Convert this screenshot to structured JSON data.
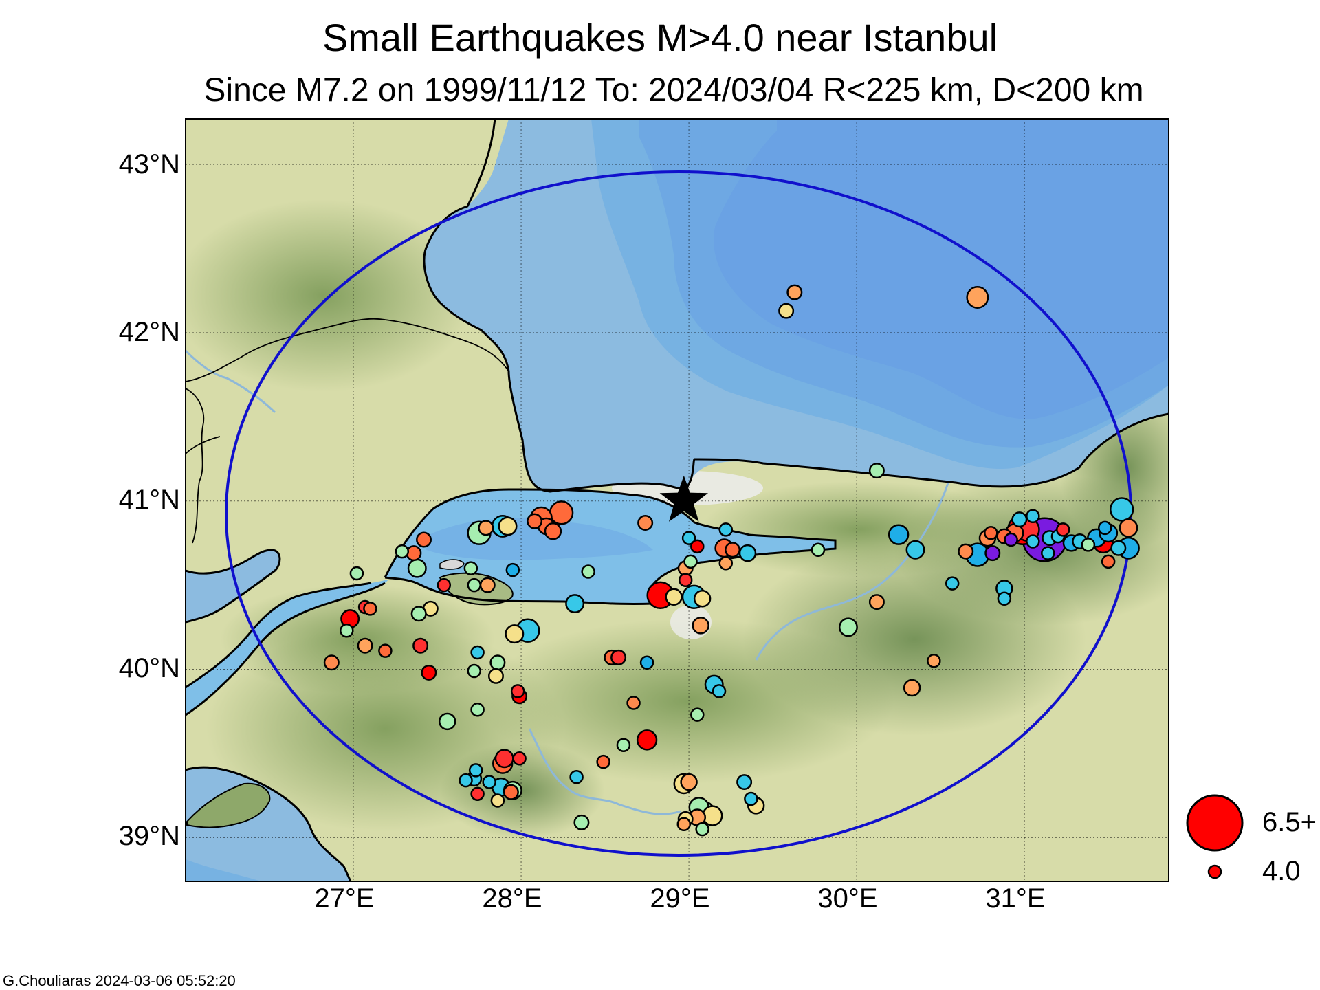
{
  "title": "Small Earthquakes M>4.0 near Istanbul",
  "subtitle": "Since M7.2 on 1999/11/12  To: 2024/03/04 R<225 km, D<200 km",
  "credit": "G.Chouliaras  2024-03-06 05:52:20",
  "lon_ticks": [
    "27°E",
    "28°E",
    "29°E",
    "30°E",
    "31°E"
  ],
  "lat_ticks": [
    "43°N",
    "42°N",
    "41°N",
    "40°N",
    "39°N"
  ],
  "legend": {
    "large": "6.5+",
    "small": "4.0"
  },
  "map": {
    "lon_range": [
      26.0,
      31.86
    ],
    "lat_range": [
      38.74,
      43.27
    ],
    "center": {
      "lon": 28.97,
      "lat": 41.0,
      "symbol": "star-icon"
    },
    "radius_km": 225,
    "colors": {
      "sea": "#7fbfe8",
      "land": "#cfd8a2",
      "radius_circle": "#1010cc"
    }
  },
  "events": [
    {
      "lon": 29.63,
      "lat": 42.24,
      "mag": 4.1,
      "color": "#ffa35c"
    },
    {
      "lon": 29.58,
      "lat": 42.13,
      "mag": 4.1,
      "color": "#f5e08a"
    },
    {
      "lon": 30.72,
      "lat": 42.21,
      "mag": 4.5,
      "color": "#ffa35c"
    },
    {
      "lon": 30.12,
      "lat": 41.18,
      "mag": 4.1,
      "color": "#a6eeb0"
    },
    {
      "lon": 28.74,
      "lat": 40.87,
      "mag": 4.1,
      "color": "#ff8a4e"
    },
    {
      "lon": 29.0,
      "lat": 40.78,
      "mag": 4.0,
      "color": "#37c8e8"
    },
    {
      "lon": 29.05,
      "lat": 40.73,
      "mag": 4.0,
      "color": "#ff0000"
    },
    {
      "lon": 29.22,
      "lat": 40.83,
      "mag": 4.0,
      "color": "#37c8e8"
    },
    {
      "lon": 29.21,
      "lat": 40.72,
      "mag": 4.3,
      "color": "#ff6a3a"
    },
    {
      "lon": 29.26,
      "lat": 40.71,
      "mag": 4.1,
      "color": "#ff6a3a"
    },
    {
      "lon": 29.35,
      "lat": 40.69,
      "mag": 4.2,
      "color": "#37c8e8"
    },
    {
      "lon": 29.22,
      "lat": 40.63,
      "mag": 4.0,
      "color": "#ffa35c"
    },
    {
      "lon": 28.98,
      "lat": 40.6,
      "mag": 4.1,
      "color": "#ffa35c"
    },
    {
      "lon": 29.01,
      "lat": 40.64,
      "mag": 4.0,
      "color": "#a6eeb0"
    },
    {
      "lon": 28.98,
      "lat": 40.53,
      "mag": 4.0,
      "color": "#ff3030"
    },
    {
      "lon": 28.83,
      "lat": 40.44,
      "mag": 4.8,
      "color": "#ff0000"
    },
    {
      "lon": 28.91,
      "lat": 40.43,
      "mag": 4.2,
      "color": "#f5e08a"
    },
    {
      "lon": 29.03,
      "lat": 40.43,
      "mag": 4.6,
      "color": "#37c8e8"
    },
    {
      "lon": 29.08,
      "lat": 40.42,
      "mag": 4.2,
      "color": "#f5e08a"
    },
    {
      "lon": 29.07,
      "lat": 40.26,
      "mag": 4.2,
      "color": "#ffa35c"
    },
    {
      "lon": 29.77,
      "lat": 40.71,
      "mag": 4.0,
      "color": "#a6eeb0"
    },
    {
      "lon": 30.25,
      "lat": 40.8,
      "mag": 4.4,
      "color": "#1faee8"
    },
    {
      "lon": 30.35,
      "lat": 40.71,
      "mag": 4.3,
      "color": "#37c8e8"
    },
    {
      "lon": 30.57,
      "lat": 40.51,
      "mag": 4.0,
      "color": "#37c8e8"
    },
    {
      "lon": 30.12,
      "lat": 40.4,
      "mag": 4.1,
      "color": "#ffa35c"
    },
    {
      "lon": 29.95,
      "lat": 40.25,
      "mag": 4.3,
      "color": "#a6eeb0"
    },
    {
      "lon": 30.46,
      "lat": 40.05,
      "mag": 4.0,
      "color": "#ffa35c"
    },
    {
      "lon": 30.33,
      "lat": 39.89,
      "mag": 4.2,
      "color": "#ffa35c"
    },
    {
      "lon": 28.24,
      "lat": 40.93,
      "mag": 4.6,
      "color": "#ff6a3a"
    },
    {
      "lon": 28.12,
      "lat": 40.9,
      "mag": 4.5,
      "color": "#ff6a3a"
    },
    {
      "lon": 28.08,
      "lat": 40.88,
      "mag": 4.1,
      "color": "#ff6a3a"
    },
    {
      "lon": 28.15,
      "lat": 40.85,
      "mag": 4.2,
      "color": "#ff6a3a"
    },
    {
      "lon": 28.19,
      "lat": 40.82,
      "mag": 4.2,
      "color": "#ff6a3a"
    },
    {
      "lon": 27.89,
      "lat": 40.85,
      "mag": 4.5,
      "color": "#37c8e8"
    },
    {
      "lon": 27.92,
      "lat": 40.85,
      "mag": 4.3,
      "color": "#f5e08a"
    },
    {
      "lon": 27.75,
      "lat": 40.81,
      "mag": 4.6,
      "color": "#a6eeb0"
    },
    {
      "lon": 27.79,
      "lat": 40.84,
      "mag": 4.1,
      "color": "#ffa35c"
    },
    {
      "lon": 27.42,
      "lat": 40.77,
      "mag": 4.1,
      "color": "#ff6a3a"
    },
    {
      "lon": 27.29,
      "lat": 40.7,
      "mag": 4.0,
      "color": "#a6eeb0"
    },
    {
      "lon": 27.36,
      "lat": 40.69,
      "mag": 4.1,
      "color": "#ff6a3a"
    },
    {
      "lon": 27.38,
      "lat": 40.6,
      "mag": 4.3,
      "color": "#a6eeb0"
    },
    {
      "lon": 27.7,
      "lat": 40.6,
      "mag": 4.0,
      "color": "#a6eeb0"
    },
    {
      "lon": 27.95,
      "lat": 40.59,
      "mag": 4.0,
      "color": "#1faee8"
    },
    {
      "lon": 28.4,
      "lat": 40.58,
      "mag": 4.0,
      "color": "#a6eeb0"
    },
    {
      "lon": 27.02,
      "lat": 40.57,
      "mag": 4.0,
      "color": "#a6eeb0"
    },
    {
      "lon": 27.54,
      "lat": 40.5,
      "mag": 4.0,
      "color": "#ff3030"
    },
    {
      "lon": 27.8,
      "lat": 40.5,
      "mag": 4.1,
      "color": "#ffa35c"
    },
    {
      "lon": 27.72,
      "lat": 40.5,
      "mag": 4.0,
      "color": "#a6eeb0"
    },
    {
      "lon": 27.46,
      "lat": 40.36,
      "mag": 4.1,
      "color": "#f5e08a"
    },
    {
      "lon": 27.39,
      "lat": 40.33,
      "mag": 4.1,
      "color": "#a6eeb0"
    },
    {
      "lon": 28.32,
      "lat": 40.39,
      "mag": 4.3,
      "color": "#37c8e8"
    },
    {
      "lon": 27.07,
      "lat": 40.37,
      "mag": 4.0,
      "color": "#ff3030"
    },
    {
      "lon": 27.1,
      "lat": 40.36,
      "mag": 4.0,
      "color": "#ff6a3a"
    },
    {
      "lon": 26.98,
      "lat": 40.3,
      "mag": 4.3,
      "color": "#ff0000"
    },
    {
      "lon": 26.96,
      "lat": 40.23,
      "mag": 4.0,
      "color": "#a6eeb0"
    },
    {
      "lon": 28.04,
      "lat": 40.23,
      "mag": 4.6,
      "color": "#37c8e8"
    },
    {
      "lon": 27.96,
      "lat": 40.21,
      "mag": 4.3,
      "color": "#f5e08a"
    },
    {
      "lon": 27.07,
      "lat": 40.14,
      "mag": 4.1,
      "color": "#ffa35c"
    },
    {
      "lon": 27.19,
      "lat": 40.11,
      "mag": 4.0,
      "color": "#ff6a3a"
    },
    {
      "lon": 27.4,
      "lat": 40.14,
      "mag": 4.1,
      "color": "#ff3030"
    },
    {
      "lon": 27.74,
      "lat": 40.1,
      "mag": 4.0,
      "color": "#37c8e8"
    },
    {
      "lon": 26.87,
      "lat": 40.04,
      "mag": 4.1,
      "color": "#ff8a4e"
    },
    {
      "lon": 27.86,
      "lat": 40.04,
      "mag": 4.1,
      "color": "#a6eeb0"
    },
    {
      "lon": 27.72,
      "lat": 39.99,
      "mag": 4.0,
      "color": "#a6eeb0"
    },
    {
      "lon": 27.85,
      "lat": 39.96,
      "mag": 4.1,
      "color": "#f5e08a"
    },
    {
      "lon": 27.45,
      "lat": 39.98,
      "mag": 4.1,
      "color": "#ff0000"
    },
    {
      "lon": 28.54,
      "lat": 40.07,
      "mag": 4.1,
      "color": "#ff6a3a"
    },
    {
      "lon": 28.58,
      "lat": 40.07,
      "mag": 4.1,
      "color": "#ff3030"
    },
    {
      "lon": 28.75,
      "lat": 40.04,
      "mag": 4.0,
      "color": "#1faee8"
    },
    {
      "lon": 29.15,
      "lat": 39.91,
      "mag": 4.3,
      "color": "#37c8e8"
    },
    {
      "lon": 29.18,
      "lat": 39.87,
      "mag": 4.0,
      "color": "#37c8e8"
    },
    {
      "lon": 27.98,
      "lat": 39.87,
      "mag": 4.0,
      "color": "#ff3030"
    },
    {
      "lon": 27.99,
      "lat": 39.84,
      "mag": 4.1,
      "color": "#ff0000"
    },
    {
      "lon": 28.67,
      "lat": 39.8,
      "mag": 4.0,
      "color": "#ff8a4e"
    },
    {
      "lon": 27.74,
      "lat": 39.76,
      "mag": 4.0,
      "color": "#a6eeb0"
    },
    {
      "lon": 27.56,
      "lat": 39.69,
      "mag": 4.2,
      "color": "#a6eeb0"
    },
    {
      "lon": 29.05,
      "lat": 39.73,
      "mag": 4.0,
      "color": "#a6eeb0"
    },
    {
      "lon": 28.75,
      "lat": 39.58,
      "mag": 4.4,
      "color": "#ff0000"
    },
    {
      "lon": 28.61,
      "lat": 39.55,
      "mag": 4.0,
      "color": "#a6eeb0"
    },
    {
      "lon": 27.9,
      "lat": 39.47,
      "mag": 4.3,
      "color": "#ff3030"
    },
    {
      "lon": 27.89,
      "lat": 39.44,
      "mag": 4.4,
      "color": "#ff6a3a"
    },
    {
      "lon": 27.99,
      "lat": 39.47,
      "mag": 4.0,
      "color": "#ff3030"
    },
    {
      "lon": 28.49,
      "lat": 39.45,
      "mag": 4.0,
      "color": "#ff6a3a"
    },
    {
      "lon": 27.73,
      "lat": 39.4,
      "mag": 4.0,
      "color": "#37c8e8"
    },
    {
      "lon": 27.72,
      "lat": 39.35,
      "mag": 4.1,
      "color": "#37c8e8"
    },
    {
      "lon": 27.67,
      "lat": 39.34,
      "mag": 4.0,
      "color": "#37c8e8"
    },
    {
      "lon": 27.81,
      "lat": 39.33,
      "mag": 4.0,
      "color": "#37c8e8"
    },
    {
      "lon": 27.88,
      "lat": 39.3,
      "mag": 4.3,
      "color": "#37c8e8"
    },
    {
      "lon": 27.95,
      "lat": 39.28,
      "mag": 4.3,
      "color": "#a6eeb0"
    },
    {
      "lon": 27.94,
      "lat": 39.27,
      "mag": 4.1,
      "color": "#ff6a3a"
    },
    {
      "lon": 27.74,
      "lat": 39.26,
      "mag": 4.0,
      "color": "#ff3030"
    },
    {
      "lon": 27.86,
      "lat": 39.22,
      "mag": 4.0,
      "color": "#f5e08a"
    },
    {
      "lon": 28.33,
      "lat": 39.36,
      "mag": 4.0,
      "color": "#37c8e8"
    },
    {
      "lon": 29.0,
      "lat": 39.33,
      "mag": 4.2,
      "color": "#ffa35c"
    },
    {
      "lon": 28.97,
      "lat": 39.32,
      "mag": 4.4,
      "color": "#f5e08a"
    },
    {
      "lon": 29.33,
      "lat": 39.33,
      "mag": 4.1,
      "color": "#37c8e8"
    },
    {
      "lon": 29.37,
      "lat": 39.23,
      "mag": 4.0,
      "color": "#37c8e8"
    },
    {
      "lon": 29.4,
      "lat": 39.19,
      "mag": 4.2,
      "color": "#f5e08a"
    },
    {
      "lon": 29.06,
      "lat": 39.18,
      "mag": 4.4,
      "color": "#a6eeb0"
    },
    {
      "lon": 29.09,
      "lat": 39.15,
      "mag": 4.5,
      "color": "#a6eeb0"
    },
    {
      "lon": 29.14,
      "lat": 39.13,
      "mag": 4.4,
      "color": "#f5e08a"
    },
    {
      "lon": 29.05,
      "lat": 39.12,
      "mag": 4.2,
      "color": "#ffa35c"
    },
    {
      "lon": 28.98,
      "lat": 39.11,
      "mag": 4.1,
      "color": "#f5e08a"
    },
    {
      "lon": 28.97,
      "lat": 39.08,
      "mag": 4.0,
      "color": "#ffa35c"
    },
    {
      "lon": 29.08,
      "lat": 39.05,
      "mag": 4.0,
      "color": "#a6eeb0"
    },
    {
      "lon": 28.36,
      "lat": 39.09,
      "mag": 4.1,
      "color": "#a6eeb0"
    },
    {
      "lon": 31.12,
      "lat": 40.77,
      "mag": 5.8,
      "color": "#7a1be0"
    },
    {
      "lon": 30.99,
      "lat": 40.83,
      "mag": 5.0,
      "color": "#ff0000"
    },
    {
      "lon": 31.02,
      "lat": 40.83,
      "mag": 4.6,
      "color": "#ff3030"
    },
    {
      "lon": 30.94,
      "lat": 40.81,
      "mag": 4.3,
      "color": "#ff6a3a"
    },
    {
      "lon": 30.78,
      "lat": 40.78,
      "mag": 4.2,
      "color": "#ff8a4e"
    },
    {
      "lon": 30.88,
      "lat": 40.79,
      "mag": 4.1,
      "color": "#ff6a3a"
    },
    {
      "lon": 30.8,
      "lat": 40.81,
      "mag": 4.0,
      "color": "#ff6a3a"
    },
    {
      "lon": 30.92,
      "lat": 40.77,
      "mag": 4.0,
      "color": "#7a1be0"
    },
    {
      "lon": 31.05,
      "lat": 40.76,
      "mag": 4.0,
      "color": "#37c8e8"
    },
    {
      "lon": 31.15,
      "lat": 40.78,
      "mag": 4.1,
      "color": "#37c8e8"
    },
    {
      "lon": 31.2,
      "lat": 40.79,
      "mag": 4.0,
      "color": "#37c8e8"
    },
    {
      "lon": 31.23,
      "lat": 40.83,
      "mag": 4.0,
      "color": "#ff3030"
    },
    {
      "lon": 31.28,
      "lat": 40.75,
      "mag": 4.2,
      "color": "#1faee8"
    },
    {
      "lon": 31.33,
      "lat": 40.76,
      "mag": 4.1,
      "color": "#37c8e8"
    },
    {
      "lon": 31.38,
      "lat": 40.74,
      "mag": 4.0,
      "color": "#a6eeb0"
    },
    {
      "lon": 31.43,
      "lat": 40.78,
      "mag": 4.3,
      "color": "#1faee8"
    },
    {
      "lon": 31.47,
      "lat": 40.75,
      "mag": 4.4,
      "color": "#ff0000"
    },
    {
      "lon": 31.5,
      "lat": 40.81,
      "mag": 4.3,
      "color": "#1faee8"
    },
    {
      "lon": 31.56,
      "lat": 40.72,
      "mag": 4.1,
      "color": "#37c8e8"
    },
    {
      "lon": 31.62,
      "lat": 40.72,
      "mag": 4.5,
      "color": "#1faee8"
    },
    {
      "lon": 31.62,
      "lat": 40.84,
      "mag": 4.3,
      "color": "#ff8a4e"
    },
    {
      "lon": 31.5,
      "lat": 40.64,
      "mag": 4.0,
      "color": "#ff6a3a"
    },
    {
      "lon": 31.58,
      "lat": 40.95,
      "mag": 4.6,
      "color": "#37c8e8"
    },
    {
      "lon": 31.48,
      "lat": 40.84,
      "mag": 4.0,
      "color": "#1faee8"
    },
    {
      "lon": 30.65,
      "lat": 40.7,
      "mag": 4.1,
      "color": "#ff8a4e"
    },
    {
      "lon": 30.72,
      "lat": 40.68,
      "mag": 4.6,
      "color": "#1faee8"
    },
    {
      "lon": 30.81,
      "lat": 40.69,
      "mag": 4.1,
      "color": "#7a1be0"
    },
    {
      "lon": 30.88,
      "lat": 40.48,
      "mag": 4.2,
      "color": "#37c8e8"
    },
    {
      "lon": 30.88,
      "lat": 40.42,
      "mag": 4.0,
      "color": "#37c8e8"
    },
    {
      "lon": 31.14,
      "lat": 40.69,
      "mag": 4.0,
      "color": "#37c8e8"
    },
    {
      "lon": 30.97,
      "lat": 40.89,
      "mag": 4.1,
      "color": "#37c8e8"
    },
    {
      "lon": 31.05,
      "lat": 40.91,
      "mag": 4.0,
      "color": "#37c8e8"
    }
  ]
}
